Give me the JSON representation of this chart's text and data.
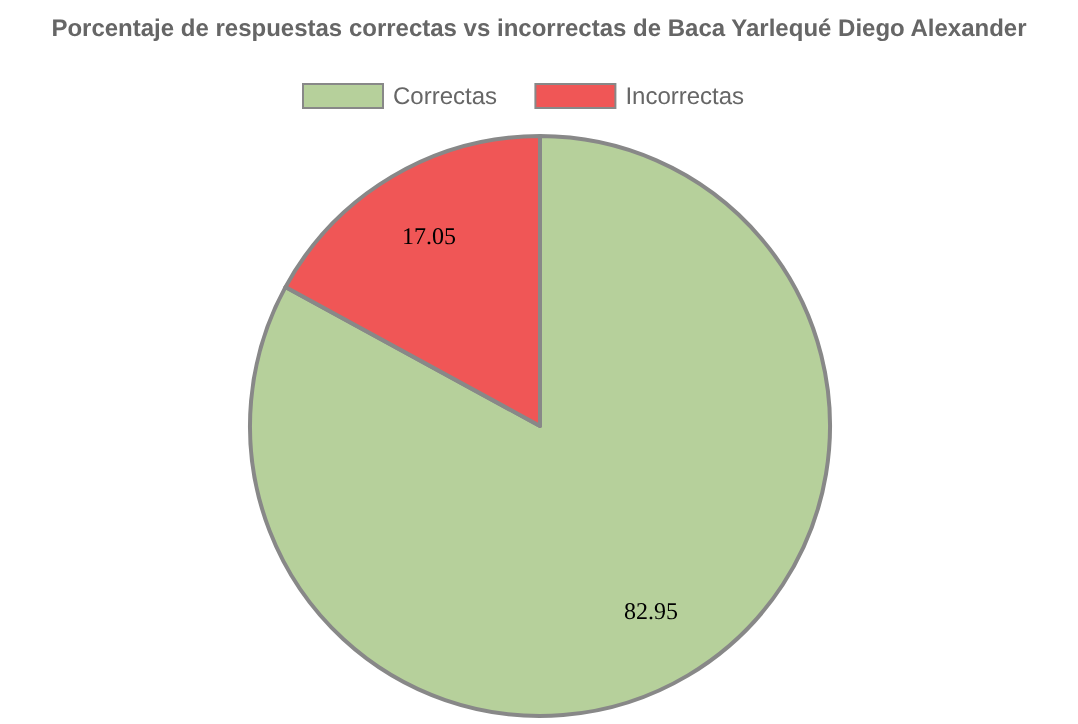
{
  "chart_data": {
    "type": "pie",
    "title": "Porcentaje de respuestas correctas vs incorrectas de Baca Yarlequé Diego Alexander",
    "categories": [
      "Correctas",
      "Incorrectas"
    ],
    "values": [
      82.95,
      17.05
    ],
    "colors": [
      "#b6d09b",
      "#f05656"
    ],
    "data_labels": true,
    "legend": "top"
  }
}
